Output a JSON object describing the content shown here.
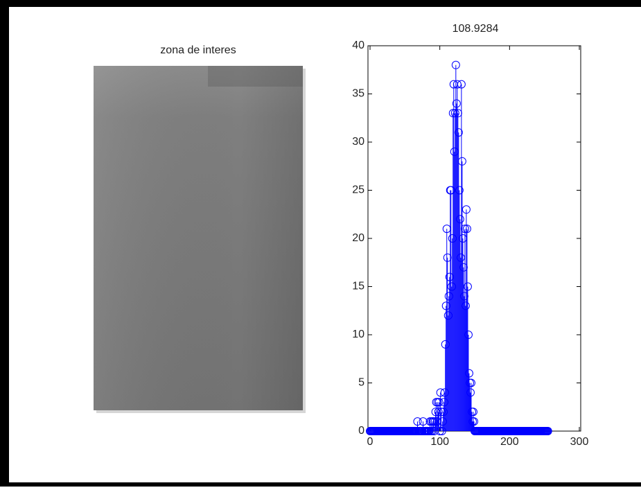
{
  "image": {
    "title": "zona de interes"
  },
  "chart_data": {
    "type": "stem",
    "title": "108.9284",
    "color": "#0000ff",
    "xlim": [
      0,
      300
    ],
    "ylim": [
      0,
      40
    ],
    "xticks": [
      0,
      100,
      200,
      300
    ],
    "yticks": [
      0,
      5,
      10,
      15,
      20,
      25,
      30,
      35,
      40
    ],
    "x": [
      0,
      1,
      2,
      3,
      4,
      5,
      6,
      7,
      8,
      9,
      10,
      11,
      12,
      13,
      14,
      15,
      16,
      17,
      18,
      19,
      20,
      21,
      22,
      23,
      24,
      25,
      26,
      27,
      28,
      29,
      30,
      31,
      32,
      33,
      34,
      35,
      36,
      37,
      38,
      39,
      40,
      41,
      42,
      43,
      44,
      45,
      46,
      47,
      48,
      49,
      50,
      51,
      52,
      53,
      54,
      55,
      56,
      57,
      58,
      59,
      60,
      61,
      62,
      63,
      64,
      65,
      66,
      67,
      68,
      69,
      70,
      71,
      72,
      73,
      74,
      75,
      76,
      77,
      78,
      79,
      80,
      81,
      82,
      83,
      84,
      85,
      86,
      87,
      88,
      89,
      90,
      91,
      92,
      93,
      94,
      95,
      96,
      97,
      98,
      99,
      100,
      101,
      102,
      103,
      104,
      105,
      106,
      107,
      108,
      109,
      110,
      111,
      112,
      113,
      114,
      115,
      116,
      117,
      118,
      119,
      120,
      121,
      122,
      123,
      124,
      125,
      126,
      127,
      128,
      129,
      130,
      131,
      132,
      133,
      134,
      135,
      136,
      137,
      138,
      139,
      140,
      141,
      142,
      143,
      144,
      145,
      146,
      147,
      148,
      149,
      150,
      151,
      152,
      153,
      154,
      155,
      156,
      157,
      158,
      159,
      160,
      161,
      162,
      163,
      164,
      165,
      166,
      167,
      168,
      169,
      170,
      171,
      172,
      173,
      174,
      175,
      176,
      177,
      178,
      179,
      180,
      181,
      182,
      183,
      184,
      185,
      186,
      187,
      188,
      189,
      190,
      191,
      192,
      193,
      194,
      195,
      196,
      197,
      198,
      199,
      200,
      201,
      202,
      203,
      204,
      205,
      206,
      207,
      208,
      209,
      210,
      211,
      212,
      213,
      214,
      215,
      216,
      217,
      218,
      219,
      220,
      221,
      222,
      223,
      224,
      225,
      226,
      227,
      228,
      229,
      230,
      231,
      232,
      233,
      234,
      235,
      236,
      237,
      238,
      239,
      240,
      241,
      242,
      243,
      244,
      245,
      246,
      247,
      248,
      249,
      250,
      251,
      252,
      253,
      254,
      255
    ],
    "values": [
      0,
      0,
      0,
      0,
      0,
      0,
      0,
      0,
      0,
      0,
      0,
      0,
      0,
      0,
      0,
      0,
      0,
      0,
      0,
      0,
      0,
      0,
      0,
      0,
      0,
      0,
      0,
      0,
      0,
      0,
      0,
      0,
      0,
      0,
      0,
      0,
      0,
      0,
      0,
      0,
      0,
      0,
      0,
      0,
      0,
      0,
      0,
      0,
      0,
      0,
      0,
      0,
      0,
      0,
      0,
      0,
      0,
      0,
      0,
      0,
      0,
      0,
      0,
      0,
      0,
      0,
      0,
      0,
      1,
      0,
      0,
      0,
      0,
      0,
      0,
      0,
      1,
      0,
      0,
      0,
      0,
      0,
      0,
      0,
      0,
      0,
      1,
      0,
      1,
      0,
      1,
      1,
      0,
      1,
      2,
      3,
      1,
      3,
      2,
      3,
      0,
      4,
      2,
      0,
      1,
      2,
      3,
      4,
      9,
      13,
      21,
      18,
      12,
      14,
      16,
      25,
      25,
      15,
      20,
      33,
      36,
      29,
      33,
      38,
      34,
      36,
      33,
      31,
      25,
      22,
      18,
      36,
      28,
      20,
      17,
      14,
      21,
      13,
      23,
      21,
      15,
      10,
      6,
      5,
      4,
      5,
      2,
      1,
      2,
      1,
      0,
      0,
      0,
      0,
      0,
      0,
      0,
      0,
      0,
      0,
      0,
      0,
      0,
      0,
      0,
      0,
      0,
      0,
      0,
      0,
      0,
      0,
      0,
      0,
      0,
      0,
      0,
      0,
      0,
      0,
      0,
      0,
      0,
      0,
      0,
      0,
      0,
      0,
      0,
      0,
      0,
      0,
      0,
      0,
      0,
      0,
      0,
      0,
      0,
      0,
      0,
      0,
      0,
      0,
      0,
      0,
      0,
      0,
      0,
      0,
      0,
      0,
      0,
      0,
      0,
      0,
      0,
      0,
      0,
      0,
      0,
      0,
      0,
      0,
      0,
      0,
      0,
      0,
      0,
      0,
      0,
      0,
      0,
      0,
      0,
      0,
      0,
      0,
      0,
      0,
      0,
      0,
      0,
      0,
      0,
      0,
      0,
      0,
      0,
      0,
      0,
      0,
      0,
      0,
      0,
      0
    ]
  }
}
